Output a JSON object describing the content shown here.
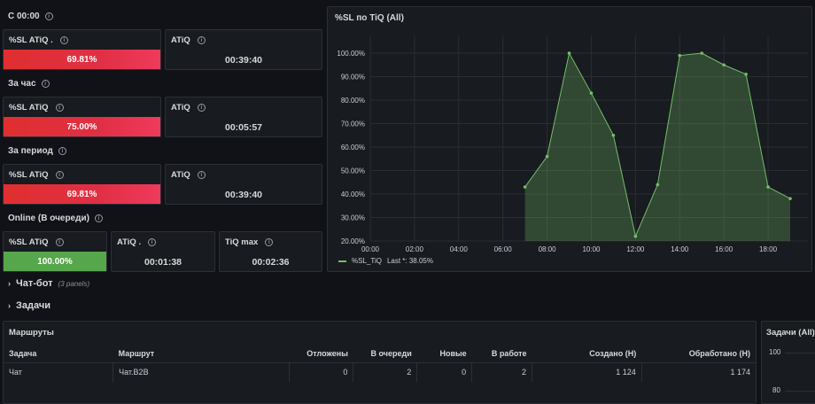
{
  "rows": {
    "since_midnight": "С 00:00",
    "hour": "За час",
    "period": "За период",
    "online": "Online (В очереди)"
  },
  "stats": {
    "sl_midnight": {
      "title": "%SL ATiQ .",
      "value": "69.81%",
      "color": "#e02f44"
    },
    "atiq_midnight": {
      "title": "ATiQ",
      "value": "00:39:40"
    },
    "sl_hour": {
      "title": "%SL ATiQ",
      "value": "75.00%",
      "color": "#e02f44"
    },
    "atiq_hour": {
      "title": "ATiQ",
      "value": "00:05:57"
    },
    "sl_period": {
      "title": "%SL ATiQ",
      "value": "69.81%",
      "color": "#e02f44"
    },
    "atiq_period": {
      "title": "ATiQ",
      "value": "00:39:40"
    },
    "sl_online": {
      "title": "%SL ATiQ",
      "value": "100.00%",
      "color": "#56a64b"
    },
    "atiq_online": {
      "title": "ATiQ .",
      "value": "00:01:38"
    },
    "tiq_max": {
      "title": "TiQ max",
      "value": "00:02:36"
    }
  },
  "chart_data": {
    "type": "area",
    "title": "%SL по TiQ (All)",
    "x": [
      "07:00",
      "08:00",
      "09:00",
      "10:00",
      "11:00",
      "12:00",
      "13:00",
      "14:00",
      "15:00",
      "16:00",
      "17:00",
      "18:00",
      "19:00"
    ],
    "series": [
      {
        "name": "%SL_TiQ",
        "color": "#73bf69",
        "values": [
          43,
          56,
          100,
          83,
          65,
          22,
          44,
          99,
          100,
          95,
          91,
          43,
          38.05
        ]
      }
    ],
    "x_ticks": [
      "00:00",
      "02:00",
      "04:00",
      "06:00",
      "08:00",
      "10:00",
      "12:00",
      "14:00",
      "16:00",
      "18:00"
    ],
    "y_ticks": [
      "20.00%",
      "30.00%",
      "40.00%",
      "50.00%",
      "60.00%",
      "70.00%",
      "80.00%",
      "90.00%",
      "100.00%"
    ],
    "ylim": [
      20,
      100
    ],
    "xlim": [
      "00:00",
      "19:00"
    ],
    "grid": true,
    "legend": "bottom-left"
  },
  "legend_label": "%SL_TiQ",
  "legend_last": "Last *: 38.05%",
  "sections": {
    "chatbot": {
      "label": "Чат-бот",
      "sub": "(3 panels)"
    },
    "tasks": {
      "label": "Задачи"
    }
  },
  "routes": {
    "title": "Маршруты",
    "columns": [
      "Задача",
      "Маршрут",
      "Отложены",
      "В очереди",
      "Новые",
      "В работе",
      "Создано (Н)",
      "Обработано (Н)"
    ],
    "rows": [
      [
        "Чат",
        "Чат.B2B",
        "0",
        "2",
        "0",
        "2",
        "1 124",
        "1 174"
      ]
    ]
  },
  "tasks_panel": {
    "title": "Задачи (All)",
    "y_ticks": [
      "100",
      "80"
    ]
  }
}
